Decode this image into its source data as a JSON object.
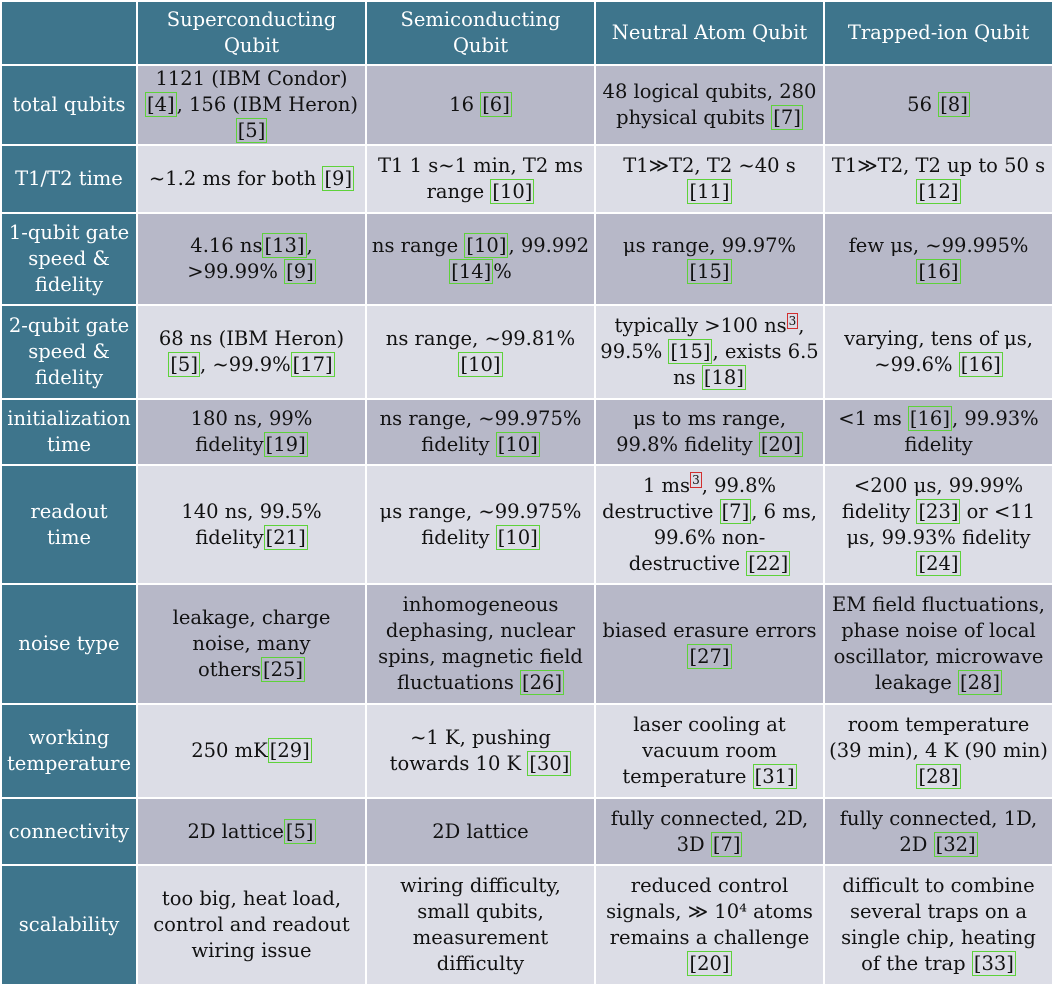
{
  "headers": [
    "",
    "Superconducting Qubit",
    "Semiconducting Qubit",
    "Neutral Atom Qubit",
    "Trapped-ion Qubit"
  ],
  "rows": [
    {
      "label": "total qubits",
      "cells": [
        [
          {
            "t": "1121 (IBM Condor)"
          },
          {
            "r": "[4]"
          },
          {
            "t": ", 156 (IBM Heron)"
          },
          {
            "r": "[5]"
          }
        ],
        [
          {
            "t": "16 "
          },
          {
            "r": "[6]"
          }
        ],
        [
          {
            "t": "48 logical qubits, 280 physical qubits "
          },
          {
            "r": "[7]"
          }
        ],
        [
          {
            "t": "56 "
          },
          {
            "r": "[8]"
          }
        ]
      ]
    },
    {
      "label": "T1/T2 time",
      "cells": [
        [
          {
            "t": "~1.2 ms for both "
          },
          {
            "r": "[9]"
          }
        ],
        [
          {
            "t": "T1 1 s~1 min, T2 ms range "
          },
          {
            "r": "[10]"
          }
        ],
        [
          {
            "t": "T1≫T2, T2 ~40 s "
          },
          {
            "r": "[11]"
          }
        ],
        [
          {
            "t": "T1≫T2, T2 up to 50 s "
          },
          {
            "r": "[12]"
          }
        ]
      ]
    },
    {
      "label": "1-qubit gate speed & fidelity",
      "cells": [
        [
          {
            "t": "4.16 ns"
          },
          {
            "r": "[13]"
          },
          {
            "t": ", >99.99% "
          },
          {
            "r": "[9]"
          }
        ],
        [
          {
            "t": "ns range "
          },
          {
            "r": "[10]"
          },
          {
            "t": ", 99.992 "
          },
          {
            "r": "[14]"
          },
          {
            "t": "%"
          }
        ],
        [
          {
            "t": "μs range, 99.97% "
          },
          {
            "r": "[15]"
          }
        ],
        [
          {
            "t": "few μs, ~99.995% "
          },
          {
            "r": "[16]"
          }
        ]
      ]
    },
    {
      "label": "2-qubit gate speed & fidelity",
      "cells": [
        [
          {
            "t": "68 ns (IBM Heron)"
          },
          {
            "r": "[5]"
          },
          {
            "t": ", ~99.9%"
          },
          {
            "r": "[17]"
          }
        ],
        [
          {
            "t": "ns range, ~99.81% "
          },
          {
            "r": "[10]"
          }
        ],
        [
          {
            "t": "typically >100 ns"
          },
          {
            "f": "3"
          },
          {
            "t": ", 99.5% "
          },
          {
            "r": "[15]"
          },
          {
            "t": ", exists 6.5 ns "
          },
          {
            "r": "[18]"
          }
        ],
        [
          {
            "t": "varying, tens of μs, ~99.6% "
          },
          {
            "r": "[16]"
          }
        ]
      ]
    },
    {
      "label": "initialization time",
      "cells": [
        [
          {
            "t": "180 ns, 99% fidelity"
          },
          {
            "r": "[19]"
          }
        ],
        [
          {
            "t": "ns range, ~99.975% fidelity "
          },
          {
            "r": "[10]"
          }
        ],
        [
          {
            "t": "μs to ms range, 99.8% fidelity "
          },
          {
            "r": "[20]"
          }
        ],
        [
          {
            "t": "<1 ms "
          },
          {
            "r": "[16]"
          },
          {
            "t": ", 99.93% fidelity"
          }
        ]
      ]
    },
    {
      "label": "readout time",
      "cells": [
        [
          {
            "t": "140 ns, 99.5% fidelity"
          },
          {
            "r": "[21]"
          }
        ],
        [
          {
            "t": "μs range, ~99.975% fidelity "
          },
          {
            "r": "[10]"
          }
        ],
        [
          {
            "t": "1 ms"
          },
          {
            "f": "3"
          },
          {
            "t": ", 99.8% destructive "
          },
          {
            "r": "[7]"
          },
          {
            "t": ", 6 ms, 99.6% non-destructive "
          },
          {
            "r": "[22]"
          }
        ],
        [
          {
            "t": "<200 μs, 99.99% fidelity "
          },
          {
            "r": "[23]"
          },
          {
            "t": " or <11 μs, 99.93% fidelity "
          },
          {
            "r": "[24]"
          }
        ]
      ]
    },
    {
      "label": "noise type",
      "cells": [
        [
          {
            "t": "leakage, charge noise, many others"
          },
          {
            "r": "[25]"
          }
        ],
        [
          {
            "t": "inhomogeneous dephasing, nuclear spins, magnetic field fluctuations "
          },
          {
            "r": "[26]"
          }
        ],
        [
          {
            "t": "biased erasure errors "
          },
          {
            "r": "[27]"
          }
        ],
        [
          {
            "t": "EM field fluctuations, phase noise of local oscillator, microwave leakage "
          },
          {
            "r": "[28]"
          }
        ]
      ]
    },
    {
      "label": "working temperature",
      "cells": [
        [
          {
            "t": "250 mK"
          },
          {
            "r": "[29]"
          }
        ],
        [
          {
            "t": "~1 K, pushing towards 10 K "
          },
          {
            "r": "[30]"
          }
        ],
        [
          {
            "t": "laser cooling at vacuum room temperature "
          },
          {
            "r": "[31]"
          }
        ],
        [
          {
            "t": "room temperature (39 min), 4 K (90 min) "
          },
          {
            "r": "[28]"
          }
        ]
      ]
    },
    {
      "label": "connectivity",
      "cells": [
        [
          {
            "t": "2D lattice"
          },
          {
            "r": "[5]"
          }
        ],
        [
          {
            "t": "2D lattice"
          }
        ],
        [
          {
            "t": "fully connected, 2D, 3D "
          },
          {
            "r": "[7]"
          }
        ],
        [
          {
            "t": "fully connected, 1D, 2D "
          },
          {
            "r": "[32]"
          }
        ]
      ]
    },
    {
      "label": "scalability",
      "cells": [
        [
          {
            "t": "too big, heat load, control and readout wiring issue"
          }
        ],
        [
          {
            "t": "wiring difficulty, small qubits, measurement difficulty"
          }
        ],
        [
          {
            "t": "reduced control signals, ≫ 10⁴ atoms remains a challenge "
          },
          {
            "r": "[20]"
          }
        ],
        [
          {
            "t": "difficult to combine several traps on a single chip, heating of the trap "
          },
          {
            "r": "[33]"
          }
        ]
      ]
    }
  ]
}
